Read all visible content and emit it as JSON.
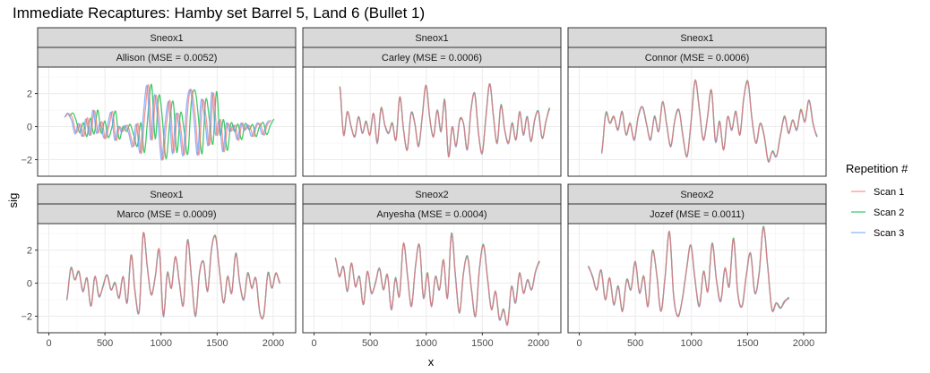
{
  "chart_data": {
    "type": "line",
    "title": "Immediate Recaptures: Hamby set Barrel 5, Land 6 (Bullet 1)",
    "xlabel": "x",
    "ylabel": "sig",
    "xlim": [
      -100,
      2200
    ],
    "ylim": [
      -3.0,
      3.6
    ],
    "x_ticks": [
      0,
      500,
      1000,
      1500,
      2000
    ],
    "y_ticks": [
      -2,
      0,
      2
    ],
    "grid": true,
    "legend": {
      "title": "Repetition #",
      "position": "right",
      "entries": [
        {
          "label": "Scan 1",
          "color": "#f8766d"
        },
        {
          "label": "Scan 2",
          "color": "#00ba38"
        },
        {
          "label": "Scan 3",
          "color": "#619cff"
        }
      ]
    },
    "panels": [
      {
        "strip_top": "Sneox1",
        "strip_bottom": "Allison (MSE = 0.0052)",
        "x_range": [
          150,
          1980
        ],
        "shift": 28,
        "y": [
          0.6,
          0.8,
          0.4,
          -0.4,
          0.2,
          -0.6,
          0.5,
          -0.5,
          1.0,
          -0.4,
          0.3,
          -0.7,
          0.0,
          0.9,
          -0.8,
          0.0,
          -0.3,
          0.1,
          -0.5,
          -1.2,
          0.2,
          -1.6,
          0.8,
          2.5,
          -0.8,
          1.9,
          0.4,
          -2.0,
          0.2,
          1.5,
          -1.6,
          0.8,
          -0.2,
          -1.7,
          1.4,
          2.2,
          0.5,
          -1.7,
          1.6,
          0.5,
          -1.1,
          2.1,
          -0.5,
          0.4,
          -1.5,
          0.2,
          -0.3,
          0.1,
          -0.8,
          0.2,
          -0.2,
          0.1,
          -0.6,
          0.0,
          0.2,
          -0.5,
          0.1,
          0.4
        ]
      },
      {
        "strip_top": "Sneox1",
        "strip_bottom": "Carley (MSE = 0.0006)",
        "x_range": [
          230,
          2100
        ],
        "shift": 0,
        "y": [
          2.4,
          -0.5,
          0.9,
          0.0,
          -0.6,
          0.6,
          -0.4,
          0.3,
          -0.5,
          0.8,
          -1.0,
          1.1,
          0.1,
          -0.4,
          0.2,
          -0.8,
          1.8,
          -0.2,
          -1.4,
          0.8,
          0.2,
          -1.2,
          0.6,
          2.5,
          0.5,
          -0.6,
          1.0,
          -0.3,
          1.6,
          -1.8,
          0.0,
          -1.2,
          0.4,
          0.2,
          -1.4,
          1.0,
          2.0,
          -0.4,
          -1.6,
          0.6,
          2.6,
          0.6,
          -1.0,
          1.3,
          -0.2,
          -1.0,
          0.2,
          -0.8,
          0.9,
          -0.5,
          0.6,
          -0.9,
          0.4,
          0.9,
          -0.7,
          0.3,
          1.1
        ]
      },
      {
        "strip_top": "Sneox1",
        "strip_bottom": "Connor (MSE = 0.0006)",
        "x_range": [
          200,
          2120
        ],
        "shift": 0,
        "y": [
          -1.6,
          0.8,
          0.2,
          0.6,
          -0.2,
          0.9,
          -0.5,
          0.2,
          -0.8,
          0.6,
          1.2,
          0.2,
          -0.8,
          0.6,
          -0.3,
          1.5,
          0.1,
          -1.2,
          0.4,
          1.0,
          -0.6,
          -1.8,
          0.3,
          2.8,
          1.1,
          -0.8,
          0.5,
          2.2,
          -0.9,
          0.3,
          -1.4,
          0.6,
          -0.2,
          0.9,
          -0.5,
          1.8,
          2.7,
          0.4,
          -1.0,
          0.2,
          -0.6,
          -2.1,
          -1.5,
          -1.8,
          -0.5,
          0.6,
          -0.4,
          0.4,
          -0.2,
          1.0,
          0.3,
          1.6,
          0.2,
          -0.6
        ]
      },
      {
        "strip_top": "Sneox1",
        "strip_bottom": "Marco (MSE = 0.0009)",
        "x_range": [
          160,
          2060
        ],
        "shift": 0,
        "y": [
          -1.0,
          0.9,
          0.2,
          0.7,
          -0.5,
          0.3,
          -1.4,
          0.4,
          -0.8,
          -0.2,
          0.5,
          -0.4,
          0.0,
          -0.9,
          0.4,
          -1.2,
          1.7,
          -0.6,
          -1.7,
          3.0,
          1.0,
          -0.7,
          0.4,
          2.0,
          -2.0,
          0.6,
          -0.3,
          1.6,
          0.0,
          -1.3,
          2.6,
          0.3,
          -2.0,
          0.6,
          1.3,
          -0.5,
          2.1,
          2.8,
          0.7,
          -1.2,
          0.4,
          -0.6,
          1.8,
          0.0,
          -1.0,
          0.6,
          -0.3,
          0.3,
          -1.8,
          -1.9,
          0.6,
          -0.3,
          0.6,
          0.0
        ]
      },
      {
        "strip_top": "Sneox2",
        "strip_bottom": "Anyesha (MSE = 0.0004)",
        "x_range": [
          190,
          2010
        ],
        "shift": 0,
        "y": [
          1.5,
          0.4,
          1.0,
          -0.5,
          1.2,
          -0.2,
          0.4,
          -1.3,
          0.7,
          -0.6,
          0.0,
          0.9,
          -0.4,
          0.5,
          -1.6,
          0.3,
          -0.8,
          2.4,
          0.5,
          -1.4,
          1.0,
          2.3,
          -0.9,
          0.6,
          -1.4,
          0.4,
          -0.4,
          1.4,
          -0.9,
          3.0,
          0.4,
          -1.8,
          0.6,
          1.6,
          -0.4,
          -2.0,
          0.9,
          2.3,
          0.3,
          -1.6,
          -0.5,
          -2.2,
          -1.6,
          -2.5,
          -0.2,
          -1.2,
          0.6,
          -0.6,
          0.2,
          -0.4,
          0.7,
          1.3
        ]
      },
      {
        "strip_top": "Sneox2",
        "strip_bottom": "Jozef (MSE = 0.0011)",
        "x_range": [
          80,
          1870
        ],
        "shift": 0,
        "y": [
          1.0,
          0.4,
          -0.4,
          0.8,
          -1.0,
          0.3,
          -1.3,
          -0.2,
          -1.7,
          0.2,
          -0.4,
          1.3,
          -0.6,
          0.4,
          -1.4,
          1.9,
          0.6,
          -1.7,
          0.4,
          3.1,
          -0.8,
          -2.0,
          -1.0,
          0.8,
          2.3,
          0.2,
          -1.4,
          0.7,
          -0.5,
          2.4,
          0.2,
          -1.1,
          0.9,
          -0.2,
          2.7,
          -0.6,
          -1.4,
          0.5,
          1.8,
          -0.6,
          0.6,
          3.4,
          1.0,
          -1.6,
          -1.2,
          -1.5,
          -1.1,
          -0.9
        ]
      }
    ]
  }
}
